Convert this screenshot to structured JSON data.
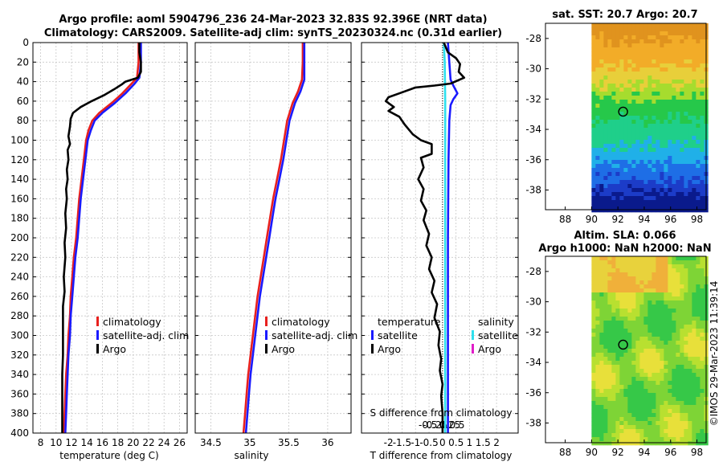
{
  "header": {
    "title_line1": "Argo profile: aoml 5904796_236 24-Mar-2023 32.83S 92.396E (NRT data)",
    "title_line2": "Climatology: CARS2009. Satellite-adj clim: synTS_20230324.nc (0.31d earlier)"
  },
  "colors": {
    "climatology": "#e8201e",
    "satellite": "#1a1aff",
    "argo": "#000000",
    "sal_satellite": "#2ee0ee",
    "sal_argo": "#e01ec8"
  },
  "chart_data": [
    {
      "type": "line",
      "name": "temperature",
      "xlabel": "temperature (deg C)",
      "xlim": [
        7,
        27
      ],
      "ylim": [
        0,
        400
      ],
      "xticks": [
        "8",
        "10",
        "12",
        "14",
        "16",
        "18",
        "20",
        "22",
        "24",
        "26"
      ],
      "xtick_values": [
        8,
        10,
        12,
        14,
        16,
        18,
        20,
        22,
        24,
        26
      ],
      "yticks": [
        0,
        20,
        40,
        60,
        80,
        100,
        120,
        140,
        160,
        180,
        200,
        220,
        240,
        260,
        280,
        300,
        320,
        340,
        360,
        380,
        400
      ],
      "grid": true,
      "legend": [
        "climatology",
        "satellite-adj. clim",
        "Argo"
      ],
      "series": [
        {
          "name": "climatology",
          "color": "#e8201e",
          "points": [
            [
              20.7,
              0
            ],
            [
              20.7,
              20
            ],
            [
              20.5,
              36
            ],
            [
              19.8,
              42
            ],
            [
              18.6,
              52
            ],
            [
              17.2,
              62
            ],
            [
              15.6,
              72
            ],
            [
              14.7,
              80
            ],
            [
              14.2,
              90
            ],
            [
              13.9,
              100
            ],
            [
              13.6,
              120
            ],
            [
              13.3,
              140
            ],
            [
              13.0,
              160
            ],
            [
              12.8,
              180
            ],
            [
              12.6,
              200
            ],
            [
              12.3,
              220
            ],
            [
              12.1,
              240
            ],
            [
              11.9,
              260
            ],
            [
              11.8,
              280
            ],
            [
              11.6,
              300
            ],
            [
              11.5,
              320
            ],
            [
              11.3,
              340
            ],
            [
              11.2,
              360
            ],
            [
              11.1,
              380
            ],
            [
              11.0,
              400
            ]
          ]
        },
        {
          "name": "satellite-adj. clim",
          "color": "#1a1aff",
          "points": [
            [
              21.0,
              0
            ],
            [
              21.0,
              20
            ],
            [
              20.8,
              36
            ],
            [
              20.2,
              42
            ],
            [
              19.0,
              52
            ],
            [
              17.6,
              62
            ],
            [
              16.0,
              72
            ],
            [
              15.0,
              80
            ],
            [
              14.5,
              90
            ],
            [
              14.1,
              100
            ],
            [
              13.8,
              120
            ],
            [
              13.5,
              140
            ],
            [
              13.2,
              160
            ],
            [
              13.0,
              180
            ],
            [
              12.8,
              200
            ],
            [
              12.5,
              220
            ],
            [
              12.3,
              240
            ],
            [
              12.1,
              260
            ],
            [
              11.9,
              280
            ],
            [
              11.8,
              300
            ],
            [
              11.6,
              320
            ],
            [
              11.5,
              340
            ],
            [
              11.4,
              360
            ],
            [
              11.3,
              380
            ],
            [
              11.2,
              400
            ]
          ]
        },
        {
          "name": "Argo",
          "color": "#000000",
          "points": [
            [
              20.8,
              0
            ],
            [
              20.8,
              10
            ],
            [
              21.0,
              20
            ],
            [
              21.0,
              30
            ],
            [
              20.6,
              36
            ],
            [
              19.0,
              40
            ],
            [
              18.5,
              43
            ],
            [
              17.5,
              48
            ],
            [
              16.2,
              54
            ],
            [
              14.6,
              60
            ],
            [
              13.2,
              66
            ],
            [
              12.2,
              72
            ],
            [
              11.9,
              78
            ],
            [
              11.8,
              86
            ],
            [
              11.6,
              96
            ],
            [
              11.8,
              104
            ],
            [
              11.5,
              110
            ],
            [
              11.6,
              120
            ],
            [
              11.4,
              130
            ],
            [
              11.5,
              140
            ],
            [
              11.3,
              150
            ],
            [
              11.4,
              160
            ],
            [
              11.2,
              175
            ],
            [
              11.3,
              190
            ],
            [
              11.1,
              205
            ],
            [
              11.2,
              220
            ],
            [
              11.0,
              240
            ],
            [
              11.1,
              255
            ],
            [
              10.9,
              270
            ],
            [
              10.9,
              285
            ],
            [
              10.9,
              300
            ],
            [
              10.9,
              320
            ],
            [
              10.8,
              340
            ],
            [
              10.8,
              360
            ],
            [
              10.8,
              380
            ],
            [
              10.8,
              400
            ]
          ]
        }
      ]
    },
    {
      "type": "line",
      "name": "salinity",
      "xlabel": "salinity",
      "xlim": [
        34.3,
        36.3
      ],
      "ylim": [
        0,
        400
      ],
      "xticks": [
        "34.5",
        "35",
        "35.5",
        "36"
      ],
      "xtick_values": [
        34.5,
        35,
        35.5,
        36
      ],
      "grid": true,
      "legend": [
        "climatology",
        "satellite-adj. clim",
        "Argo"
      ],
      "series": [
        {
          "name": "climatology",
          "color": "#e8201e",
          "points": [
            [
              35.68,
              0
            ],
            [
              35.68,
              20
            ],
            [
              35.67,
              38
            ],
            [
              35.62,
              50
            ],
            [
              35.55,
              62
            ],
            [
              35.48,
              80
            ],
            [
              35.44,
              100
            ],
            [
              35.4,
              120
            ],
            [
              35.35,
              140
            ],
            [
              35.3,
              160
            ],
            [
              35.26,
              180
            ],
            [
              35.22,
              200
            ],
            [
              35.18,
              220
            ],
            [
              35.14,
              240
            ],
            [
              35.1,
              260
            ],
            [
              35.07,
              280
            ],
            [
              35.04,
              300
            ],
            [
              35.01,
              320
            ],
            [
              34.98,
              340
            ],
            [
              34.96,
              360
            ],
            [
              34.94,
              380
            ],
            [
              34.92,
              400
            ]
          ]
        },
        {
          "name": "satellite-adj. clim",
          "color": "#1a1aff",
          "points": [
            [
              35.7,
              0
            ],
            [
              35.7,
              20
            ],
            [
              35.7,
              38
            ],
            [
              35.65,
              50
            ],
            [
              35.58,
              62
            ],
            [
              35.51,
              80
            ],
            [
              35.47,
              100
            ],
            [
              35.43,
              120
            ],
            [
              35.38,
              140
            ],
            [
              35.33,
              160
            ],
            [
              35.29,
              180
            ],
            [
              35.25,
              200
            ],
            [
              35.21,
              220
            ],
            [
              35.17,
              240
            ],
            [
              35.13,
              260
            ],
            [
              35.1,
              280
            ],
            [
              35.07,
              300
            ],
            [
              35.04,
              320
            ],
            [
              35.01,
              340
            ],
            [
              34.99,
              360
            ],
            [
              34.97,
              380
            ],
            [
              34.95,
              400
            ]
          ]
        }
      ]
    },
    {
      "type": "line",
      "name": "differences",
      "xlabel": "T difference from climatology",
      "top_label": "S difference from climatology",
      "xlim": [
        -3,
        2.8
      ],
      "ylim": [
        0,
        400
      ],
      "xticks": [
        "-2",
        "-1.5",
        "-1",
        "-0.5",
        "0",
        "0.5",
        "1",
        "1.5",
        "2"
      ],
      "xtick_values": [
        -2,
        -1.5,
        -1,
        -0.5,
        0,
        0.5,
        1,
        1.5,
        2
      ],
      "sticks": [
        "-0.5",
        "-0.25",
        "0",
        "0.25",
        "0.5"
      ],
      "stick_values": [
        -0.5,
        -0.25,
        0,
        0.25,
        0.5
      ],
      "grid": true,
      "legend_left_title": "temperature",
      "legend_right_title": "salinity",
      "legend_left": [
        "satellite",
        "Argo"
      ],
      "legend_right": [
        "satellite",
        "Argo"
      ],
      "series": [
        {
          "name": "T satellite",
          "color": "#1a1aff",
          "points": [
            [
              0.2,
              0
            ],
            [
              0.25,
              20
            ],
            [
              0.3,
              38
            ],
            [
              0.4,
              44
            ],
            [
              0.55,
              52
            ],
            [
              0.4,
              58
            ],
            [
              0.3,
              64
            ],
            [
              0.25,
              80
            ],
            [
              0.22,
              120
            ],
            [
              0.2,
              200
            ],
            [
              0.2,
              300
            ],
            [
              0.2,
              400
            ]
          ]
        },
        {
          "name": "S satellite",
          "color": "#2ee0ee",
          "points": [
            [
              0.05,
              0
            ],
            [
              0.08,
              20
            ],
            [
              0.1,
              60
            ],
            [
              0.1,
              120
            ],
            [
              0.1,
              200
            ],
            [
              0.1,
              300
            ],
            [
              0.1,
              400
            ]
          ]
        },
        {
          "name": "T Argo",
          "color": "#000000",
          "points": [
            [
              0.05,
              0
            ],
            [
              0.2,
              10
            ],
            [
              0.5,
              16
            ],
            [
              0.65,
              22
            ],
            [
              0.6,
              30
            ],
            [
              0.8,
              36
            ],
            [
              0.3,
              42
            ],
            [
              -0.3,
              44
            ],
            [
              -1.0,
              46
            ],
            [
              -1.6,
              52
            ],
            [
              -2.0,
              56
            ],
            [
              -2.1,
              60
            ],
            [
              -1.8,
              66
            ],
            [
              -2.0,
              70
            ],
            [
              -1.6,
              76
            ],
            [
              -1.4,
              84
            ],
            [
              -1.1,
              94
            ],
            [
              -0.8,
              100
            ],
            [
              -0.4,
              104
            ],
            [
              -0.4,
              114
            ],
            [
              -0.8,
              118
            ],
            [
              -0.7,
              128
            ],
            [
              -0.9,
              140
            ],
            [
              -0.7,
              150
            ],
            [
              -0.8,
              162
            ],
            [
              -0.6,
              172
            ],
            [
              -0.7,
              182
            ],
            [
              -0.5,
              196
            ],
            [
              -0.6,
              208
            ],
            [
              -0.4,
              220
            ],
            [
              -0.5,
              232
            ],
            [
              -0.3,
              244
            ],
            [
              -0.4,
              256
            ],
            [
              -0.2,
              268
            ],
            [
              -0.3,
              282
            ],
            [
              -0.1,
              296
            ],
            [
              -0.15,
              310
            ],
            [
              -0.05,
              324
            ],
            [
              -0.1,
              336
            ],
            [
              0.0,
              350
            ],
            [
              -0.05,
              362
            ],
            [
              0.0,
              380
            ],
            [
              0.0,
              400
            ]
          ]
        }
      ]
    }
  ],
  "sst_map": {
    "title": "sat. SST: 20.7  Argo: 20.7",
    "xticks": [
      "88",
      "90",
      "92",
      "94",
      "96",
      "98"
    ],
    "xtick_values": [
      88,
      90,
      92,
      94,
      96,
      98
    ],
    "yticks": [
      "-28",
      "-30",
      "-32",
      "-34",
      "-36",
      "-38"
    ],
    "ytick_values": [
      -28,
      -30,
      -32,
      -34,
      -36,
      -38
    ],
    "xlim": [
      86.5,
      98.7
    ],
    "ylim": [
      -39.3,
      -27.0
    ],
    "float_lon": 92.396,
    "float_lat": -32.83
  },
  "sla_map": {
    "title_line1": "Altim. SLA: 0.066",
    "title_line2": "Argo h1000: NaN h2000: NaN",
    "xticks": [
      "88",
      "90",
      "92",
      "94",
      "96",
      "98"
    ],
    "xtick_values": [
      88,
      90,
      92,
      94,
      96,
      98
    ],
    "yticks": [
      "-28",
      "-30",
      "-32",
      "-34",
      "-36",
      "-38"
    ],
    "ytick_values": [
      -28,
      -30,
      -32,
      -34,
      -36,
      -38
    ],
    "xlim": [
      86.5,
      98.7
    ],
    "ylim": [
      -39.3,
      -27.0
    ],
    "float_lon": 92.396,
    "float_lat": -32.83
  },
  "footer": {
    "watermark": "©IMOS 29-Mar-2023 11:39:14"
  }
}
